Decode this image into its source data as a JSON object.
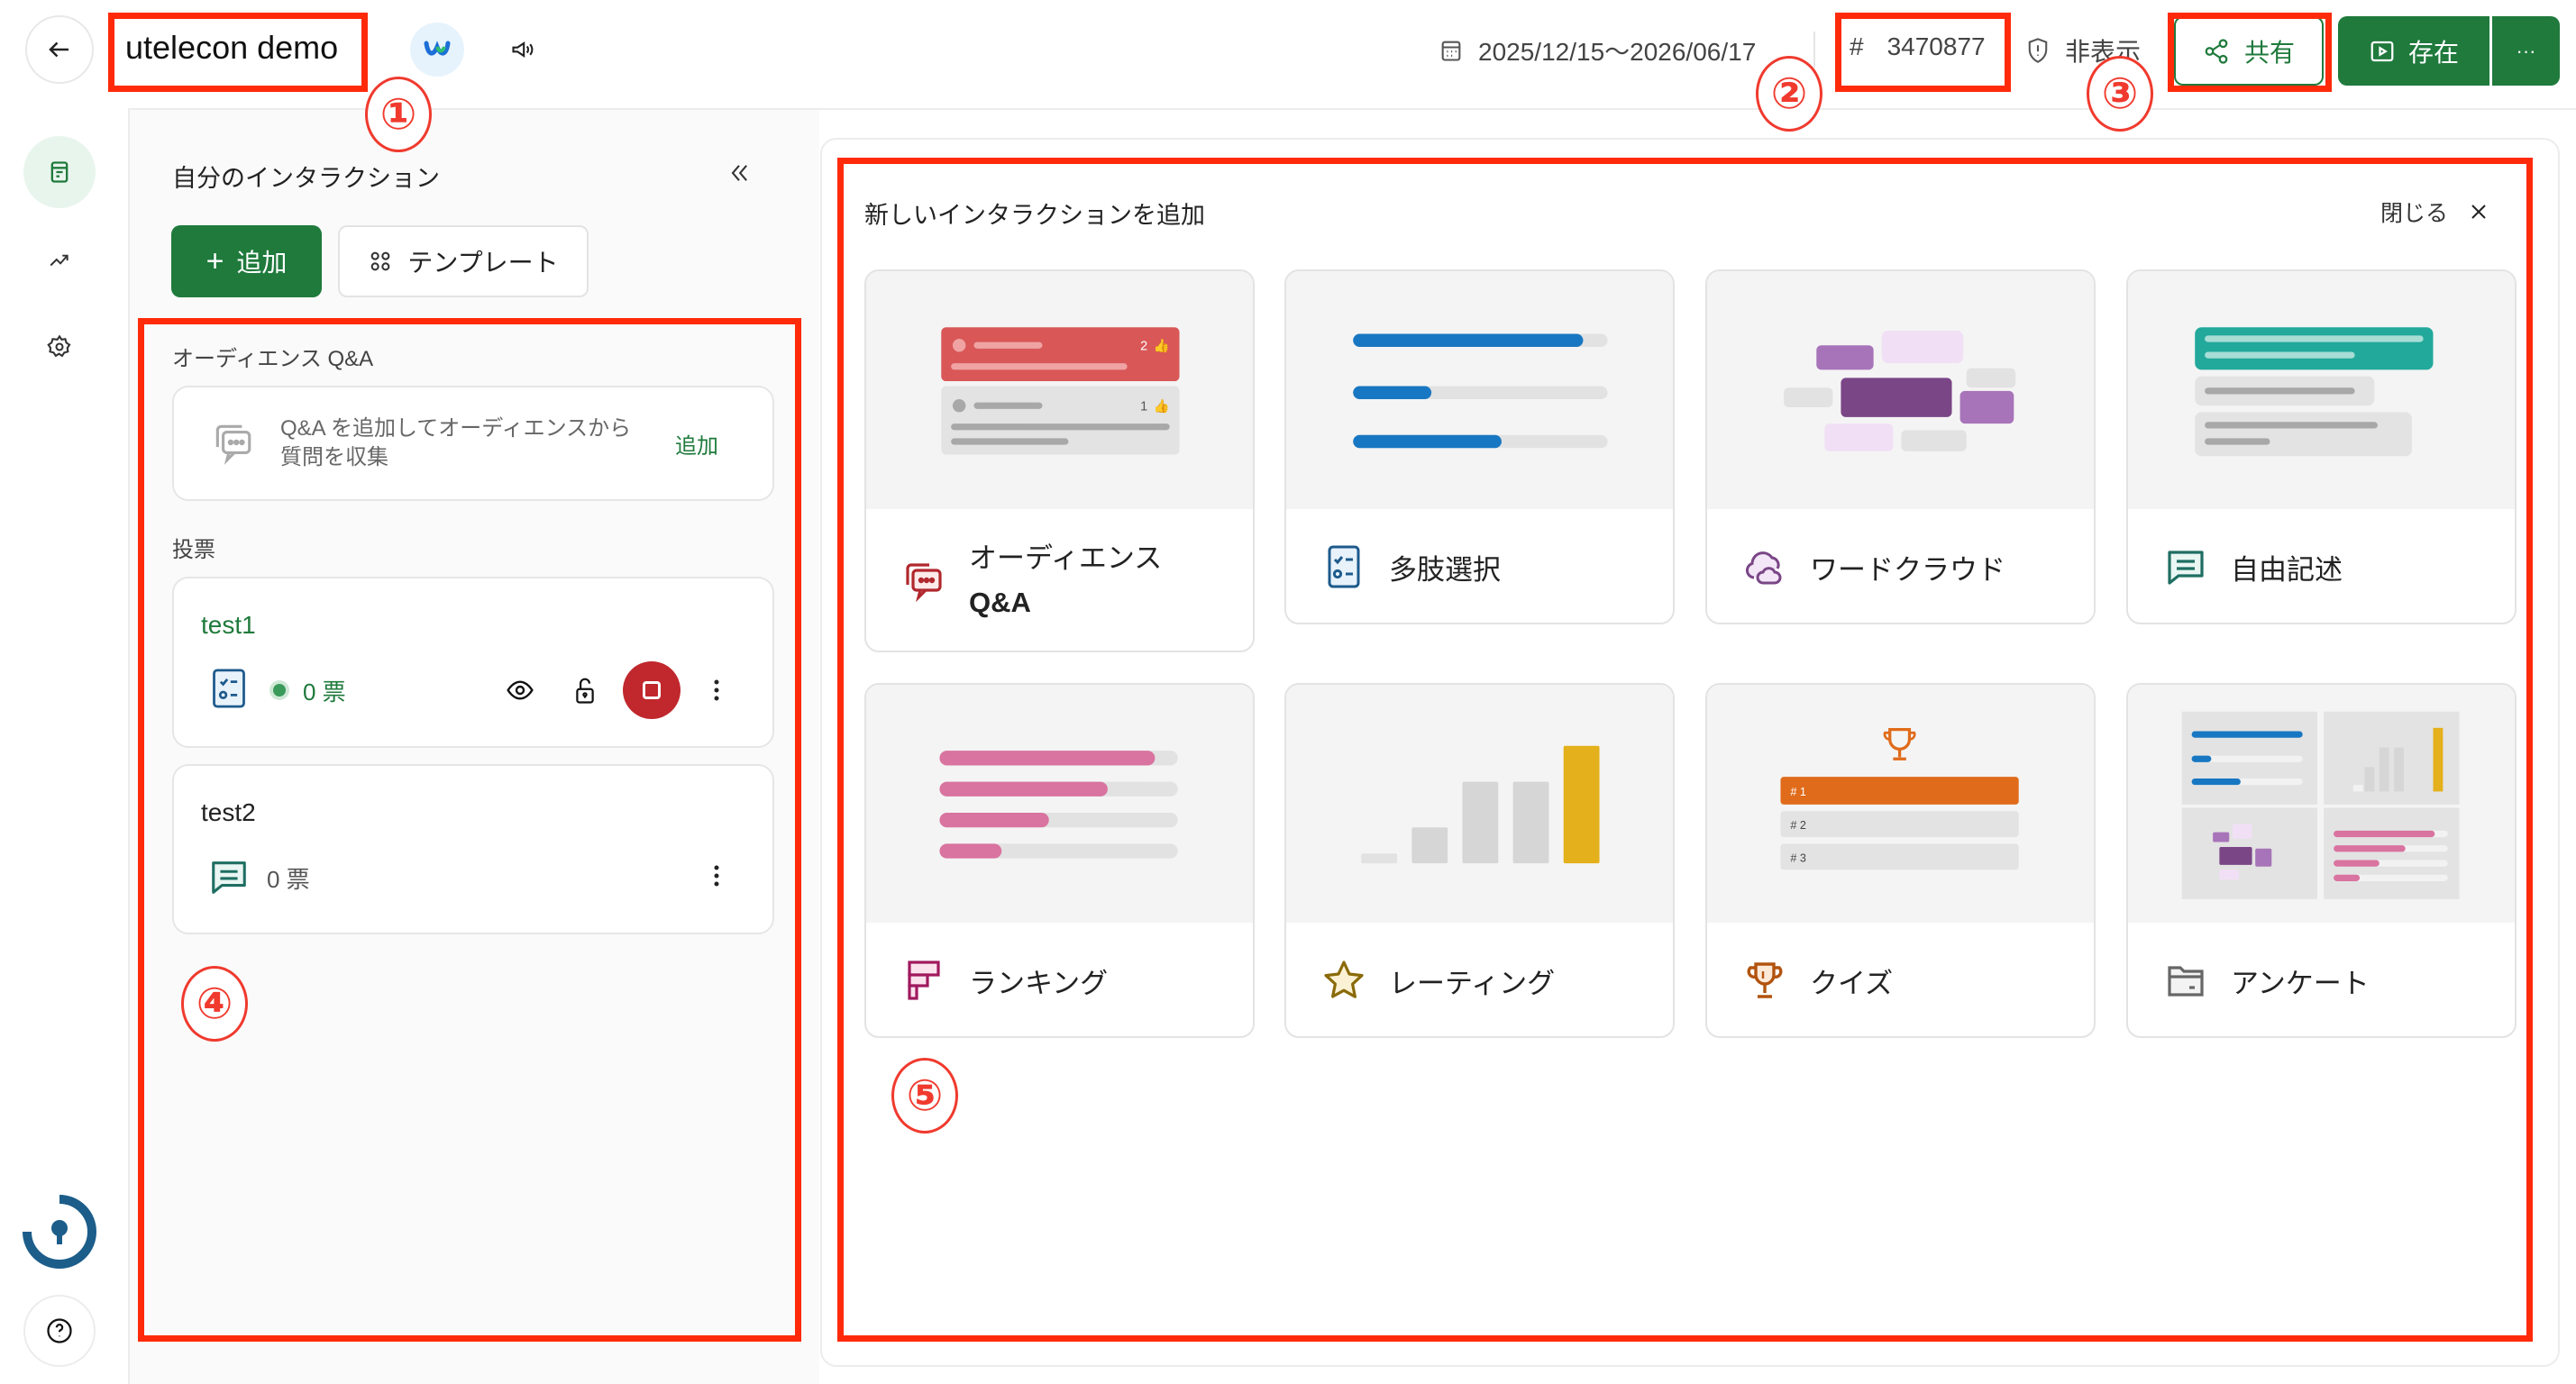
{
  "header": {
    "back_icon": "arrow-left-icon",
    "title": "utelecon demo",
    "webex_icon": "webex-logo-icon",
    "announce_icon": "megaphone-icon",
    "date_range": "2025/12/15〜2026/06/17",
    "code_prefix": "#",
    "code": "3470877",
    "visibility": "非表示",
    "share_label": "共有",
    "present_label": "存在",
    "more_label": "···"
  },
  "rail": {
    "items": [
      "interactions-icon",
      "analytics-icon",
      "settings-icon"
    ],
    "bottom": [
      "tips-icon",
      "help-icon"
    ]
  },
  "left_panel": {
    "title": "自分のインタラクション",
    "add_label": "追加",
    "template_label": "テンプレート",
    "qa_section": "オーディエンス Q&A",
    "qa_prompt": "Q&A を追加してオーディエンスから質問を収集",
    "qa_add": "追加",
    "poll_section": "投票",
    "polls": [
      {
        "title": "test1",
        "votes": "0 票",
        "active": true,
        "type": "multiple-choice"
      },
      {
        "title": "test2",
        "votes": "0 票",
        "active": false,
        "type": "open-text"
      }
    ]
  },
  "new_panel": {
    "title": "新しいインタラクションを追加",
    "close_label": "閉じる",
    "types": [
      {
        "label": "オーディエンス",
        "label2": "Q&A",
        "icon": "qa-icon"
      },
      {
        "label": "多肢選択",
        "icon": "checklist-icon"
      },
      {
        "label": "ワードクラウド",
        "icon": "cloud-icon"
      },
      {
        "label": "自由記述",
        "icon": "text-bubble-icon"
      },
      {
        "label": "ランキング",
        "icon": "ranking-icon"
      },
      {
        "label": "レーティング",
        "icon": "star-icon"
      },
      {
        "label": "クイズ",
        "icon": "trophy-icon"
      },
      {
        "label": "アンケート",
        "icon": "folder-icon"
      }
    ],
    "preview": {
      "qa_likes": [
        "2",
        "1"
      ],
      "quiz_ranks": [
        "# 1",
        "# 2",
        "# 3"
      ]
    }
  },
  "annotations": [
    "①",
    "②",
    "③",
    "④",
    "⑤"
  ],
  "colors": {
    "brand_green": "#1f7a3c",
    "stop_red": "#c0282d",
    "annotation_red": "#ff2a0a"
  }
}
